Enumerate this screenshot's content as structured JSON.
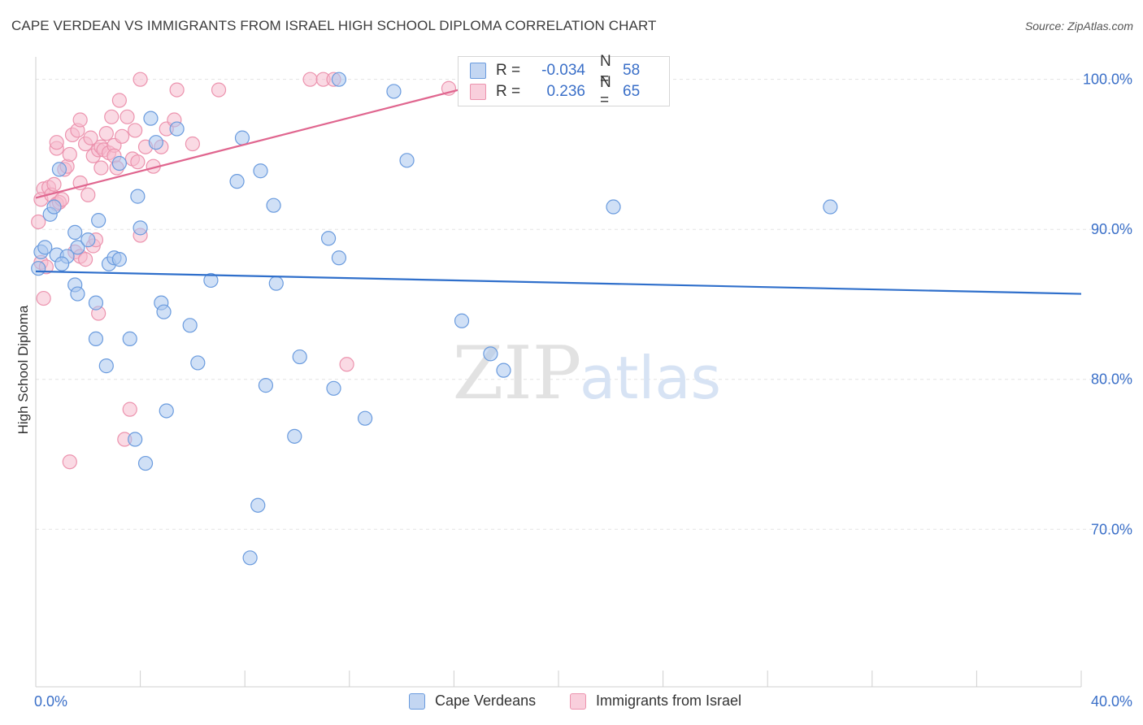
{
  "title": "CAPE VERDEAN VS IMMIGRANTS FROM ISRAEL HIGH SCHOOL DIPLOMA CORRELATION CHART",
  "source": "Source: ZipAtlas.com",
  "watermark": {
    "zip": "ZIP",
    "atlas": "atlas"
  },
  "legend_box": {
    "rows": [
      {
        "r_label": "R =",
        "r_value": "-0.034",
        "n_label": "N =",
        "n_value": "58"
      },
      {
        "r_label": "R =",
        "r_value": "0.236",
        "n_label": "N =",
        "n_value": "65"
      }
    ]
  },
  "bottom_legend": {
    "cape": "Cape Verdeans",
    "israel": "Immigrants from Israel"
  },
  "colors": {
    "blue_fill": "#a9c6ee",
    "blue_stroke": "#6a9bde",
    "blue_line": "#2f6fcb",
    "pink_fill": "#f6bccd",
    "pink_stroke": "#ec93ae",
    "pink_line": "#e0668f",
    "axis_text": "#3a6fc8",
    "grid": "#e3e3e3"
  },
  "chart_data": {
    "type": "scatter",
    "title": "CAPE VERDEAN VS IMMIGRANTS FROM ISRAEL HIGH SCHOOL DIPLOMA CORRELATION CHART",
    "xlabel": "",
    "ylabel": "High School Diploma",
    "xlim": [
      0,
      40
    ],
    "ylim": [
      59.5,
      101.5
    ],
    "x_tick_labels": [
      "0.0%",
      "40.0%"
    ],
    "y_ticks": [
      100,
      90,
      80,
      70
    ],
    "y_tick_labels": [
      "100.0%",
      "90.0%",
      "80.0%",
      "70.0%"
    ],
    "series": [
      {
        "name": "Cape Verdeans",
        "R": -0.034,
        "N": 58,
        "trend": {
          "x": [
            0,
            40
          ],
          "y": [
            87.2,
            85.7
          ]
        },
        "points": [
          [
            0.1,
            87.4
          ],
          [
            0.2,
            88.5
          ],
          [
            0.35,
            88.8
          ],
          [
            0.55,
            91.0
          ],
          [
            0.7,
            91.5
          ],
          [
            0.9,
            94.0
          ],
          [
            0.8,
            88.3
          ],
          [
            1.2,
            88.2
          ],
          [
            1.0,
            87.7
          ],
          [
            1.5,
            89.8
          ],
          [
            1.6,
            88.8
          ],
          [
            2.0,
            89.3
          ],
          [
            1.5,
            86.3
          ],
          [
            1.6,
            85.7
          ],
          [
            2.4,
            90.6
          ],
          [
            2.3,
            85.1
          ],
          [
            2.3,
            82.7
          ],
          [
            2.7,
            80.9
          ],
          [
            2.8,
            87.7
          ],
          [
            3.0,
            88.1
          ],
          [
            3.2,
            88.0
          ],
          [
            3.2,
            94.4
          ],
          [
            3.6,
            82.7
          ],
          [
            3.9,
            92.2
          ],
          [
            4.0,
            90.1
          ],
          [
            3.8,
            76.0
          ],
          [
            4.2,
            74.4
          ],
          [
            4.4,
            97.4
          ],
          [
            4.6,
            95.8
          ],
          [
            4.8,
            85.1
          ],
          [
            4.9,
            84.5
          ],
          [
            5.0,
            77.9
          ],
          [
            5.4,
            96.7
          ],
          [
            5.9,
            83.6
          ],
          [
            6.2,
            81.1
          ],
          [
            6.7,
            86.6
          ],
          [
            7.7,
            93.2
          ],
          [
            7.9,
            96.1
          ],
          [
            8.5,
            71.6
          ],
          [
            8.2,
            68.1
          ],
          [
            8.6,
            93.9
          ],
          [
            8.8,
            79.6
          ],
          [
            9.1,
            91.6
          ],
          [
            9.2,
            86.4
          ],
          [
            9.9,
            76.2
          ],
          [
            10.1,
            81.5
          ],
          [
            11.2,
            89.4
          ],
          [
            11.4,
            79.4
          ],
          [
            11.6,
            88.1
          ],
          [
            11.6,
            100.0
          ],
          [
            12.6,
            77.4
          ],
          [
            13.7,
            99.2
          ],
          [
            14.2,
            94.6
          ],
          [
            16.3,
            83.9
          ],
          [
            17.4,
            81.7
          ],
          [
            17.9,
            80.6
          ],
          [
            22.1,
            91.5
          ],
          [
            30.4,
            91.5
          ]
        ]
      },
      {
        "name": "Immigrants from Israel",
        "R": 0.236,
        "N": 65,
        "trend": {
          "x": [
            0,
            18.2
          ],
          "y": [
            92.1,
            100.2
          ]
        },
        "points": [
          [
            0.1,
            90.5
          ],
          [
            0.2,
            87.8
          ],
          [
            0.3,
            85.4
          ],
          [
            0.4,
            87.5
          ],
          [
            0.3,
            92.7
          ],
          [
            0.2,
            92.0
          ],
          [
            0.5,
            92.8
          ],
          [
            0.6,
            92.3
          ],
          [
            0.7,
            93.0
          ],
          [
            0.8,
            91.7
          ],
          [
            0.8,
            95.4
          ],
          [
            0.8,
            95.8
          ],
          [
            0.9,
            91.8
          ],
          [
            1.0,
            92.0
          ],
          [
            1.1,
            94.0
          ],
          [
            1.2,
            94.2
          ],
          [
            1.3,
            95.0
          ],
          [
            1.4,
            96.3
          ],
          [
            1.3,
            74.5
          ],
          [
            1.5,
            88.5
          ],
          [
            1.6,
            96.6
          ],
          [
            1.7,
            97.3
          ],
          [
            1.7,
            93.1
          ],
          [
            1.7,
            88.2
          ],
          [
            1.9,
            95.7
          ],
          [
            1.9,
            88.0
          ],
          [
            2.0,
            92.3
          ],
          [
            2.1,
            96.1
          ],
          [
            2.2,
            94.9
          ],
          [
            2.2,
            88.9
          ],
          [
            2.3,
            89.3
          ],
          [
            2.4,
            84.4
          ],
          [
            2.4,
            95.3
          ],
          [
            2.5,
            94.1
          ],
          [
            2.5,
            95.5
          ],
          [
            2.6,
            95.3
          ],
          [
            2.7,
            96.4
          ],
          [
            2.8,
            95.1
          ],
          [
            2.9,
            97.5
          ],
          [
            3.0,
            95.6
          ],
          [
            3.0,
            94.9
          ],
          [
            3.1,
            94.1
          ],
          [
            3.2,
            98.6
          ],
          [
            3.3,
            96.2
          ],
          [
            3.4,
            76.0
          ],
          [
            3.5,
            97.5
          ],
          [
            3.6,
            78.0
          ],
          [
            3.7,
            94.7
          ],
          [
            3.8,
            96.6
          ],
          [
            3.9,
            94.5
          ],
          [
            4.0,
            100.0
          ],
          [
            4.0,
            89.6
          ],
          [
            4.2,
            95.5
          ],
          [
            4.5,
            94.2
          ],
          [
            4.8,
            95.5
          ],
          [
            5.0,
            96.7
          ],
          [
            5.3,
            97.3
          ],
          [
            5.4,
            99.3
          ],
          [
            6.0,
            95.7
          ],
          [
            7.0,
            99.3
          ],
          [
            10.5,
            100.0
          ],
          [
            11.0,
            100.0
          ],
          [
            11.4,
            100.0
          ],
          [
            11.9,
            81.0
          ],
          [
            15.8,
            99.4
          ]
        ]
      }
    ]
  }
}
